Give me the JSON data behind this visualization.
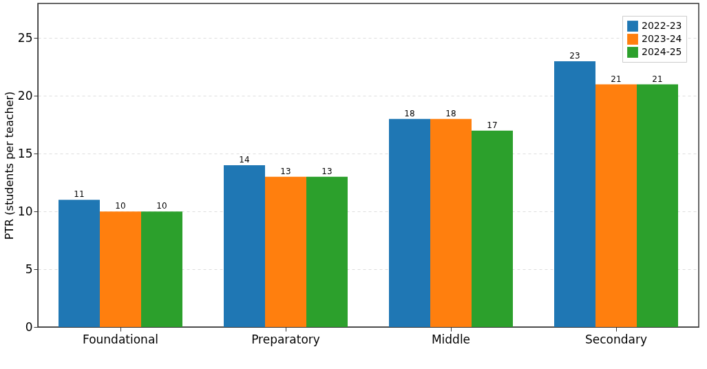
{
  "chart_data": {
    "type": "bar",
    "ylabel": "PTR (students per teacher)",
    "categories": [
      "Foundational",
      "Preparatory",
      "Middle",
      "Secondary"
    ],
    "series": [
      {
        "name": "2022-23",
        "color": "#1f77b4",
        "values": [
          11,
          14,
          18,
          23
        ]
      },
      {
        "name": "2023-24",
        "color": "#ff7f0e",
        "values": [
          10,
          13,
          18,
          21
        ]
      },
      {
        "name": "2024-25",
        "color": "#2ca02c",
        "values": [
          10,
          13,
          17,
          21
        ]
      }
    ],
    "ylim": [
      0,
      28
    ],
    "yticks": [
      0,
      5,
      10,
      15,
      20,
      25
    ],
    "grid": "y",
    "legend": "top right",
    "data_labels": true
  }
}
